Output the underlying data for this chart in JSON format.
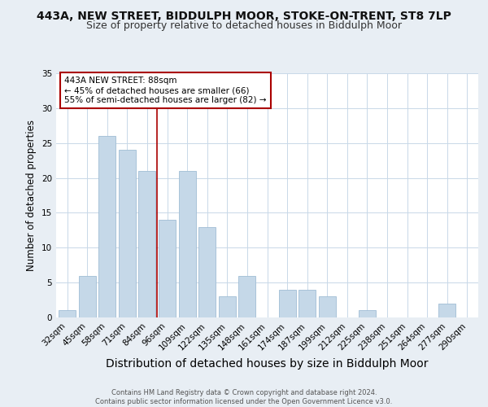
{
  "title": "443A, NEW STREET, BIDDULPH MOOR, STOKE-ON-TRENT, ST8 7LP",
  "subtitle": "Size of property relative to detached houses in Biddulph Moor",
  "xlabel": "Distribution of detached houses by size in Biddulph Moor",
  "ylabel": "Number of detached properties",
  "categories": [
    "32sqm",
    "45sqm",
    "58sqm",
    "71sqm",
    "84sqm",
    "96sqm",
    "109sqm",
    "122sqm",
    "135sqm",
    "148sqm",
    "161sqm",
    "174sqm",
    "187sqm",
    "199sqm",
    "212sqm",
    "225sqm",
    "238sqm",
    "251sqm",
    "264sqm",
    "277sqm",
    "290sqm"
  ],
  "values": [
    1,
    6,
    26,
    24,
    21,
    14,
    21,
    13,
    3,
    6,
    0,
    4,
    4,
    3,
    0,
    1,
    0,
    0,
    0,
    2,
    0
  ],
  "bar_color": "#c5d8e8",
  "bar_edge_color": "#a0bdd4",
  "vline_x_index": 4.5,
  "vline_color": "#aa0000",
  "annotation_text": "443A NEW STREET: 88sqm\n← 45% of detached houses are smaller (66)\n55% of semi-detached houses are larger (82) →",
  "annotation_box_color": "#ffffff",
  "annotation_box_edge_color": "#aa0000",
  "ylim": [
    0,
    35
  ],
  "yticks": [
    0,
    5,
    10,
    15,
    20,
    25,
    30,
    35
  ],
  "title_fontsize": 10,
  "subtitle_fontsize": 9,
  "xlabel_fontsize": 10,
  "ylabel_fontsize": 8.5,
  "tick_fontsize": 7.5,
  "annotation_fontsize": 7.5,
  "footer_text": "Contains HM Land Registry data © Crown copyright and database right 2024.\nContains public sector information licensed under the Open Government Licence v3.0.",
  "background_color": "#e8eef4",
  "plot_background_color": "#ffffff",
  "grid_color": "#c8d8e8"
}
